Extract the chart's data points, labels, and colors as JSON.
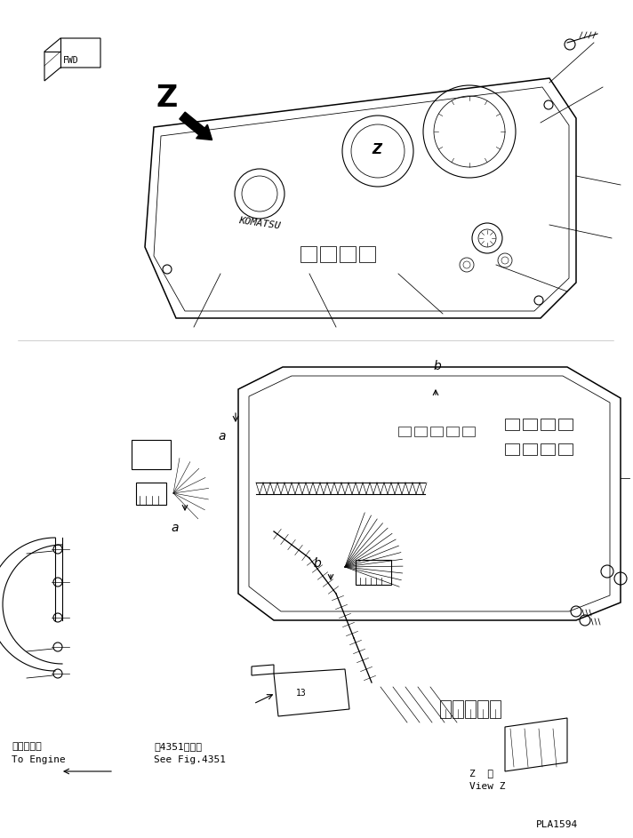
{
  "bg_color": "#ffffff",
  "line_color": "#000000",
  "fig_width": 7.12,
  "fig_height": 9.43,
  "dpi": 100,
  "title_code": "PLA1594",
  "bottom_left_text1": "エンジンへ",
  "bottom_left_text2": "To Engine",
  "bottom_mid_text1": "笥4351図参照",
  "bottom_mid_text2": "See Fig.4351",
  "bottom_right_text1": "Z  視",
  "bottom_right_text2": "View Z"
}
